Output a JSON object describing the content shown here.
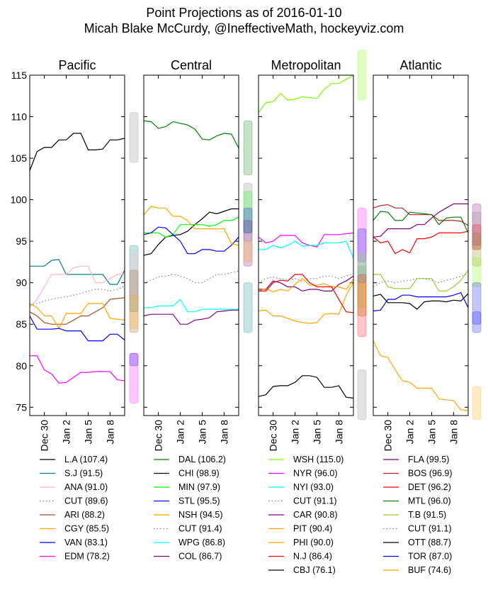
{
  "title_lines": [
    "Point Projections as of 2016-01-10",
    "Micah Blake McCurdy, @IneffectiveMath, hockeyviz.com"
  ],
  "chart_data": {
    "type": "line",
    "ylim": [
      74,
      115
    ],
    "yticks": [
      75,
      80,
      85,
      90,
      95,
      100,
      105,
      110,
      115
    ],
    "xrange": [
      "2015-12-28",
      "2016-01-10"
    ],
    "xticks": [
      {
        "label": "Dec 30",
        "date": "2015-12-30"
      },
      {
        "label": "Jan 2",
        "date": "2016-01-02"
      },
      {
        "label": "Jan 5",
        "date": "2016-01-05"
      },
      {
        "label": "Jan 8",
        "date": "2016-01-08"
      }
    ],
    "panels": [
      {
        "title": "Pacific",
        "series": [
          {
            "label": "L.A (107.4)",
            "color": "#000000",
            "values": [
              103.5,
              105.8,
              106.3,
              106.3,
              107.2,
              107.2,
              108,
              108,
              106,
              106,
              106.1,
              107.2,
              107.2,
              107.4
            ]
          },
          {
            "label": "S.J (91.5)",
            "color": "#008080",
            "values": [
              92,
              92,
              92,
              92.7,
              92.8,
              91,
              91,
              91,
              91,
              91,
              91,
              89.8,
              89.8,
              91.5
            ]
          },
          {
            "label": "ANA (91.0)",
            "color": "#ffb6c1",
            "values": [
              87,
              88,
              89.5,
              91,
              91,
              91,
              91.8,
              92,
              92,
              90,
              90,
              90.5,
              91,
              91
            ]
          },
          {
            "label": "CUT (89.6)",
            "color": "#808080",
            "dashed": true,
            "values": [
              87.3,
              87.5,
              87.8,
              88,
              88.2,
              88.3,
              88.5,
              88.7,
              89,
              89.2,
              89.2,
              89,
              89.2,
              89.6
            ]
          },
          {
            "label": "ARI (88.2)",
            "color": "#a0522d",
            "values": [
              86.5,
              86,
              85.2,
              85,
              85,
              85,
              85.5,
              86,
              86,
              86.5,
              87,
              88,
              88.1,
              88.2
            ]
          },
          {
            "label": "CGY (85.5)",
            "color": "#ffa500",
            "values": [
              87.5,
              87,
              86,
              86,
              84.5,
              86.3,
              86.3,
              86.3,
              87.5,
              87.5,
              87.5,
              85.7,
              85.6,
              85.5
            ]
          },
          {
            "label": "VAN (83.1)",
            "color": "#0000ff",
            "values": [
              86,
              84.4,
              84.4,
              84.4,
              84.5,
              84.2,
              84.2,
              84.2,
              83,
              83,
              83,
              83.8,
              83.8,
              83.1
            ]
          },
          {
            "label": "EDM (78.2)",
            "color": "#ff00ff",
            "values": [
              81.2,
              81.2,
              79.5,
              79,
              77.9,
              78,
              78.6,
              79.2,
              79.2,
              79.3,
              79.3,
              79.3,
              78.3,
              78.2
            ]
          }
        ],
        "bands": [
          {
            "color": "#808080",
            "range": [
              104.5,
              110.5
            ]
          },
          {
            "color": "#008080",
            "range": [
              86.5,
              94.5
            ]
          },
          {
            "color": "#ffb6c1",
            "range": [
              88,
              93.5
            ]
          },
          {
            "color": "#a0522d",
            "range": [
              84,
              91.5
            ]
          },
          {
            "color": "#ffa500",
            "range": [
              84.5,
              88.5
            ]
          },
          {
            "color": "#ff00ff",
            "range": [
              75.5,
              81.5
            ]
          },
          {
            "color": "#0000ff",
            "range": [
              80,
              81.5
            ]
          }
        ]
      },
      {
        "title": "Central",
        "series": [
          {
            "label": "DAL (106.2)",
            "color": "#008000",
            "values": [
              109.5,
              109.4,
              108.6,
              108.8,
              109.4,
              109.2,
              109,
              108.5,
              107.3,
              107.2,
              107.7,
              108,
              107.9,
              106.2
            ]
          },
          {
            "label": "CHI (98.9)",
            "color": "#000000",
            "values": [
              93.3,
              93.5,
              94.6,
              95.5,
              95.7,
              95.8,
              96.2,
              97,
              97.7,
              98.5,
              98.3,
              98.6,
              98.9,
              98.9
            ]
          },
          {
            "label": "MIN (97.9)",
            "color": "#00ff00",
            "values": [
              96,
              96,
              96,
              95.5,
              95.8,
              97,
              97,
              97,
              97,
              96.8,
              97,
              97.5,
              97.5,
              97.9
            ]
          },
          {
            "label": "STL (95.5)",
            "color": "#0000ff",
            "values": [
              95.8,
              96,
              96.7,
              96.6,
              95.8,
              95,
              93.5,
              93.5,
              94,
              94,
              93.8,
              93.8,
              94.5,
              95.5
            ]
          },
          {
            "label": "NSH (94.5)",
            "color": "#ffa500",
            "values": [
              98.2,
              99.2,
              99,
              99,
              98,
              98,
              97.5,
              96.5,
              96.5,
              96.5,
              96.5,
              96.5,
              94.7,
              94.5
            ]
          },
          {
            "label": "CUT (91.4)",
            "color": "#808080",
            "dashed": true,
            "values": [
              90,
              90.3,
              90.7,
              90.8,
              91,
              90.8,
              90.5,
              90,
              90,
              90.5,
              91,
              91,
              91.2,
              91.4
            ]
          },
          {
            "label": "WPG (86.8)",
            "color": "#00ffff",
            "values": [
              87,
              87,
              87.2,
              87.2,
              87.2,
              88,
              86.5,
              86.5,
              86.8,
              86.8,
              86.8,
              86.8,
              86.8,
              86.8
            ]
          },
          {
            "label": "COL (86.7)",
            "color": "#800080",
            "values": [
              86,
              86.2,
              86.2,
              86.2,
              86.2,
              85,
              85,
              85.5,
              85.6,
              85.8,
              86.5,
              86.6,
              86.7,
              86.7
            ]
          }
        ],
        "bands": [
          {
            "color": "#008000",
            "range": [
              103,
              109.5
            ]
          },
          {
            "color": "#808080",
            "range": [
              95,
              102
            ]
          },
          {
            "color": "#00ff00",
            "range": [
              96,
              101
            ]
          },
          {
            "color": "#0000ff",
            "range": [
              96,
              99
            ]
          },
          {
            "color": "#800080",
            "range": [
              92,
              97.5
            ]
          },
          {
            "color": "#ffa500",
            "range": [
              92.5,
              95
            ]
          },
          {
            "color": "#008080",
            "range": [
              84,
              90
            ]
          }
        ]
      },
      {
        "title": "Metropolitan",
        "series": [
          {
            "label": "WSH (115.0)",
            "color": "#7cfc00",
            "values": [
              110.5,
              111.7,
              111.8,
              112.8,
              112,
              112.1,
              112.4,
              112.3,
              112.2,
              113.3,
              114,
              114,
              114.5,
              115
            ]
          },
          {
            "label": "NYR (96.0)",
            "color": "#ff00ff",
            "values": [
              95.5,
              94.8,
              95,
              95.7,
              95.7,
              95.7,
              94.8,
              94.5,
              94.3,
              95.8,
              95.8,
              95.8,
              95.9,
              96
            ]
          },
          {
            "label": "NYI (93.0)",
            "color": "#00ffff",
            "values": [
              94,
              94,
              94.5,
              94.2,
              94.5,
              95,
              94.4,
              94.5,
              94.5,
              94.8,
              94.8,
              94.8,
              95,
              93
            ]
          },
          {
            "label": "CUT (91.1)",
            "color": "#808080",
            "dashed": true,
            "values": [
              90,
              90.5,
              90.7,
              90.5,
              90.3,
              90.5,
              90.2,
              90.5,
              90.5,
              90.8,
              90.8,
              90.5,
              90.8,
              91.1
            ]
          },
          {
            "label": "CAR (90.8)",
            "color": "#800080",
            "values": [
              89.2,
              89.2,
              90.2,
              90,
              89.5,
              89.5,
              89,
              89.2,
              89.2,
              89,
              89,
              89.8,
              90.2,
              90.8
            ]
          },
          {
            "label": "PIT (90.4)",
            "color": "#ffa500",
            "values": [
              89,
              89.3,
              88.9,
              89.2,
              89,
              89.8,
              90.5,
              89.7,
              89.7,
              89.9,
              89.5,
              89.5,
              89.2,
              90.4
            ]
          },
          {
            "label": "PHI (90.0)",
            "color": "#ffa500",
            "values": [
              86.6,
              86.7,
              86,
              86,
              85.7,
              85.4,
              85.2,
              85.1,
              85.2,
              86.2,
              86.3,
              86.2,
              88.5,
              90
            ]
          },
          {
            "label": "N.J (86.4)",
            "color": "#ff0000",
            "values": [
              89,
              89,
              90,
              90.3,
              90.2,
              91,
              91,
              90,
              89.5,
              89.5,
              89.5,
              88,
              86.5,
              86.4
            ]
          },
          {
            "label": "CBJ (76.1)",
            "color": "#000000",
            "values": [
              76.3,
              76.5,
              77.5,
              77.6,
              77.6,
              78,
              78.8,
              78.8,
              78.6,
              77.4,
              77.4,
              77.6,
              76.2,
              76.1
            ]
          }
        ],
        "bands": [
          {
            "color": "#7cfc00",
            "range": [
              112,
              118
            ]
          },
          {
            "color": "#ff00ff",
            "range": [
              92.5,
              99
            ]
          },
          {
            "color": "#0000ff",
            "range": [
              90,
              96.5
            ]
          },
          {
            "color": "#808080",
            "range": [
              86,
              92
            ]
          },
          {
            "color": "#7cfc00",
            "range": [
              87,
              93.5
            ]
          },
          {
            "color": "#ffa500",
            "range": [
              86,
              90
            ]
          },
          {
            "color": "#ff0000",
            "range": [
              83.5,
              91
            ]
          },
          {
            "color": "#808080",
            "range": [
              73.5,
              79.5
            ]
          }
        ]
      },
      {
        "title": "Atlantic",
        "series": [
          {
            "label": "FLA (99.5)",
            "color": "#800080",
            "values": [
              95.5,
              95.6,
              96.5,
              96.5,
              96.5,
              96.5,
              97,
              97,
              97.8,
              98.5,
              99,
              99.5,
              99.5,
              99.5
            ]
          },
          {
            "label": "BOS (96.9)",
            "color": "#b22222",
            "values": [
              99,
              99.3,
              99.4,
              99,
              99,
              98.2,
              98.2,
              98.2,
              98.2,
              97.5,
              97.5,
              97.5,
              97.4,
              96.9
            ]
          },
          {
            "label": "DET (96.2)",
            "color": "#ff0000",
            "values": [
              95.5,
              94.8,
              95,
              93.5,
              94,
              93.6,
              95.3,
              95.3,
              95.5,
              96,
              96,
              96,
              96,
              96.2
            ]
          },
          {
            "label": "MTL (96.0)",
            "color": "#008000",
            "values": [
              97.5,
              98.6,
              98.5,
              97.5,
              97.5,
              98.5,
              98.4,
              98.3,
              98.2,
              97,
              97.8,
              97.9,
              97.9,
              96
            ]
          },
          {
            "label": "T.B (91.5)",
            "color": "#9acd32",
            "values": [
              91,
              91,
              89.5,
              89.3,
              89.3,
              89.3,
              90.5,
              90.5,
              90.5,
              89,
              89,
              89.5,
              90.3,
              91.5
            ]
          },
          {
            "label": "CUT (91.1)",
            "color": "#808080",
            "dashed": true,
            "values": [
              89.5,
              90,
              90.2,
              90,
              90.2,
              90.3,
              90.5,
              90.5,
              90.3,
              90,
              90.3,
              90.5,
              90.8,
              91.1
            ]
          },
          {
            "label": "OTT (88.7)",
            "color": "#000000",
            "values": [
              88.4,
              88.6,
              87.6,
              87.6,
              87.6,
              87.5,
              86.8,
              87.7,
              87.8,
              87.8,
              87.7,
              87.9,
              87.8,
              88.7
            ]
          },
          {
            "label": "TOR (87.0)",
            "color": "#0000ff",
            "values": [
              86.6,
              86.7,
              88,
              88,
              88.5,
              88.5,
              88.3,
              88.3,
              88.3,
              88.3,
              88.3,
              88.5,
              88.8,
              87
            ]
          },
          {
            "label": "BUF (74.6)",
            "color": "#ffa500",
            "values": [
              83,
              81.2,
              81,
              79.5,
              78.2,
              78,
              77.3,
              77.3,
              77.3,
              76,
              75.9,
              75.8,
              74.7,
              74.6
            ]
          }
        ],
        "bands": [
          {
            "color": "#800080",
            "range": [
              94.5,
              99.5
            ]
          },
          {
            "color": "#808080",
            "range": [
              94,
              98.5
            ]
          },
          {
            "color": "#ff0000",
            "range": [
              94,
              97
            ]
          },
          {
            "color": "#808000",
            "range": [
              92,
              96
            ]
          },
          {
            "color": "#7cfc00",
            "range": [
              89.5,
              93
            ]
          },
          {
            "color": "#0000ff",
            "range": [
              85,
              90
            ]
          },
          {
            "color": "#0000ff",
            "range": [
              84,
              86.5
            ]
          },
          {
            "color": "#ffa500",
            "range": [
              73.5,
              77.5
            ]
          }
        ]
      }
    ]
  }
}
